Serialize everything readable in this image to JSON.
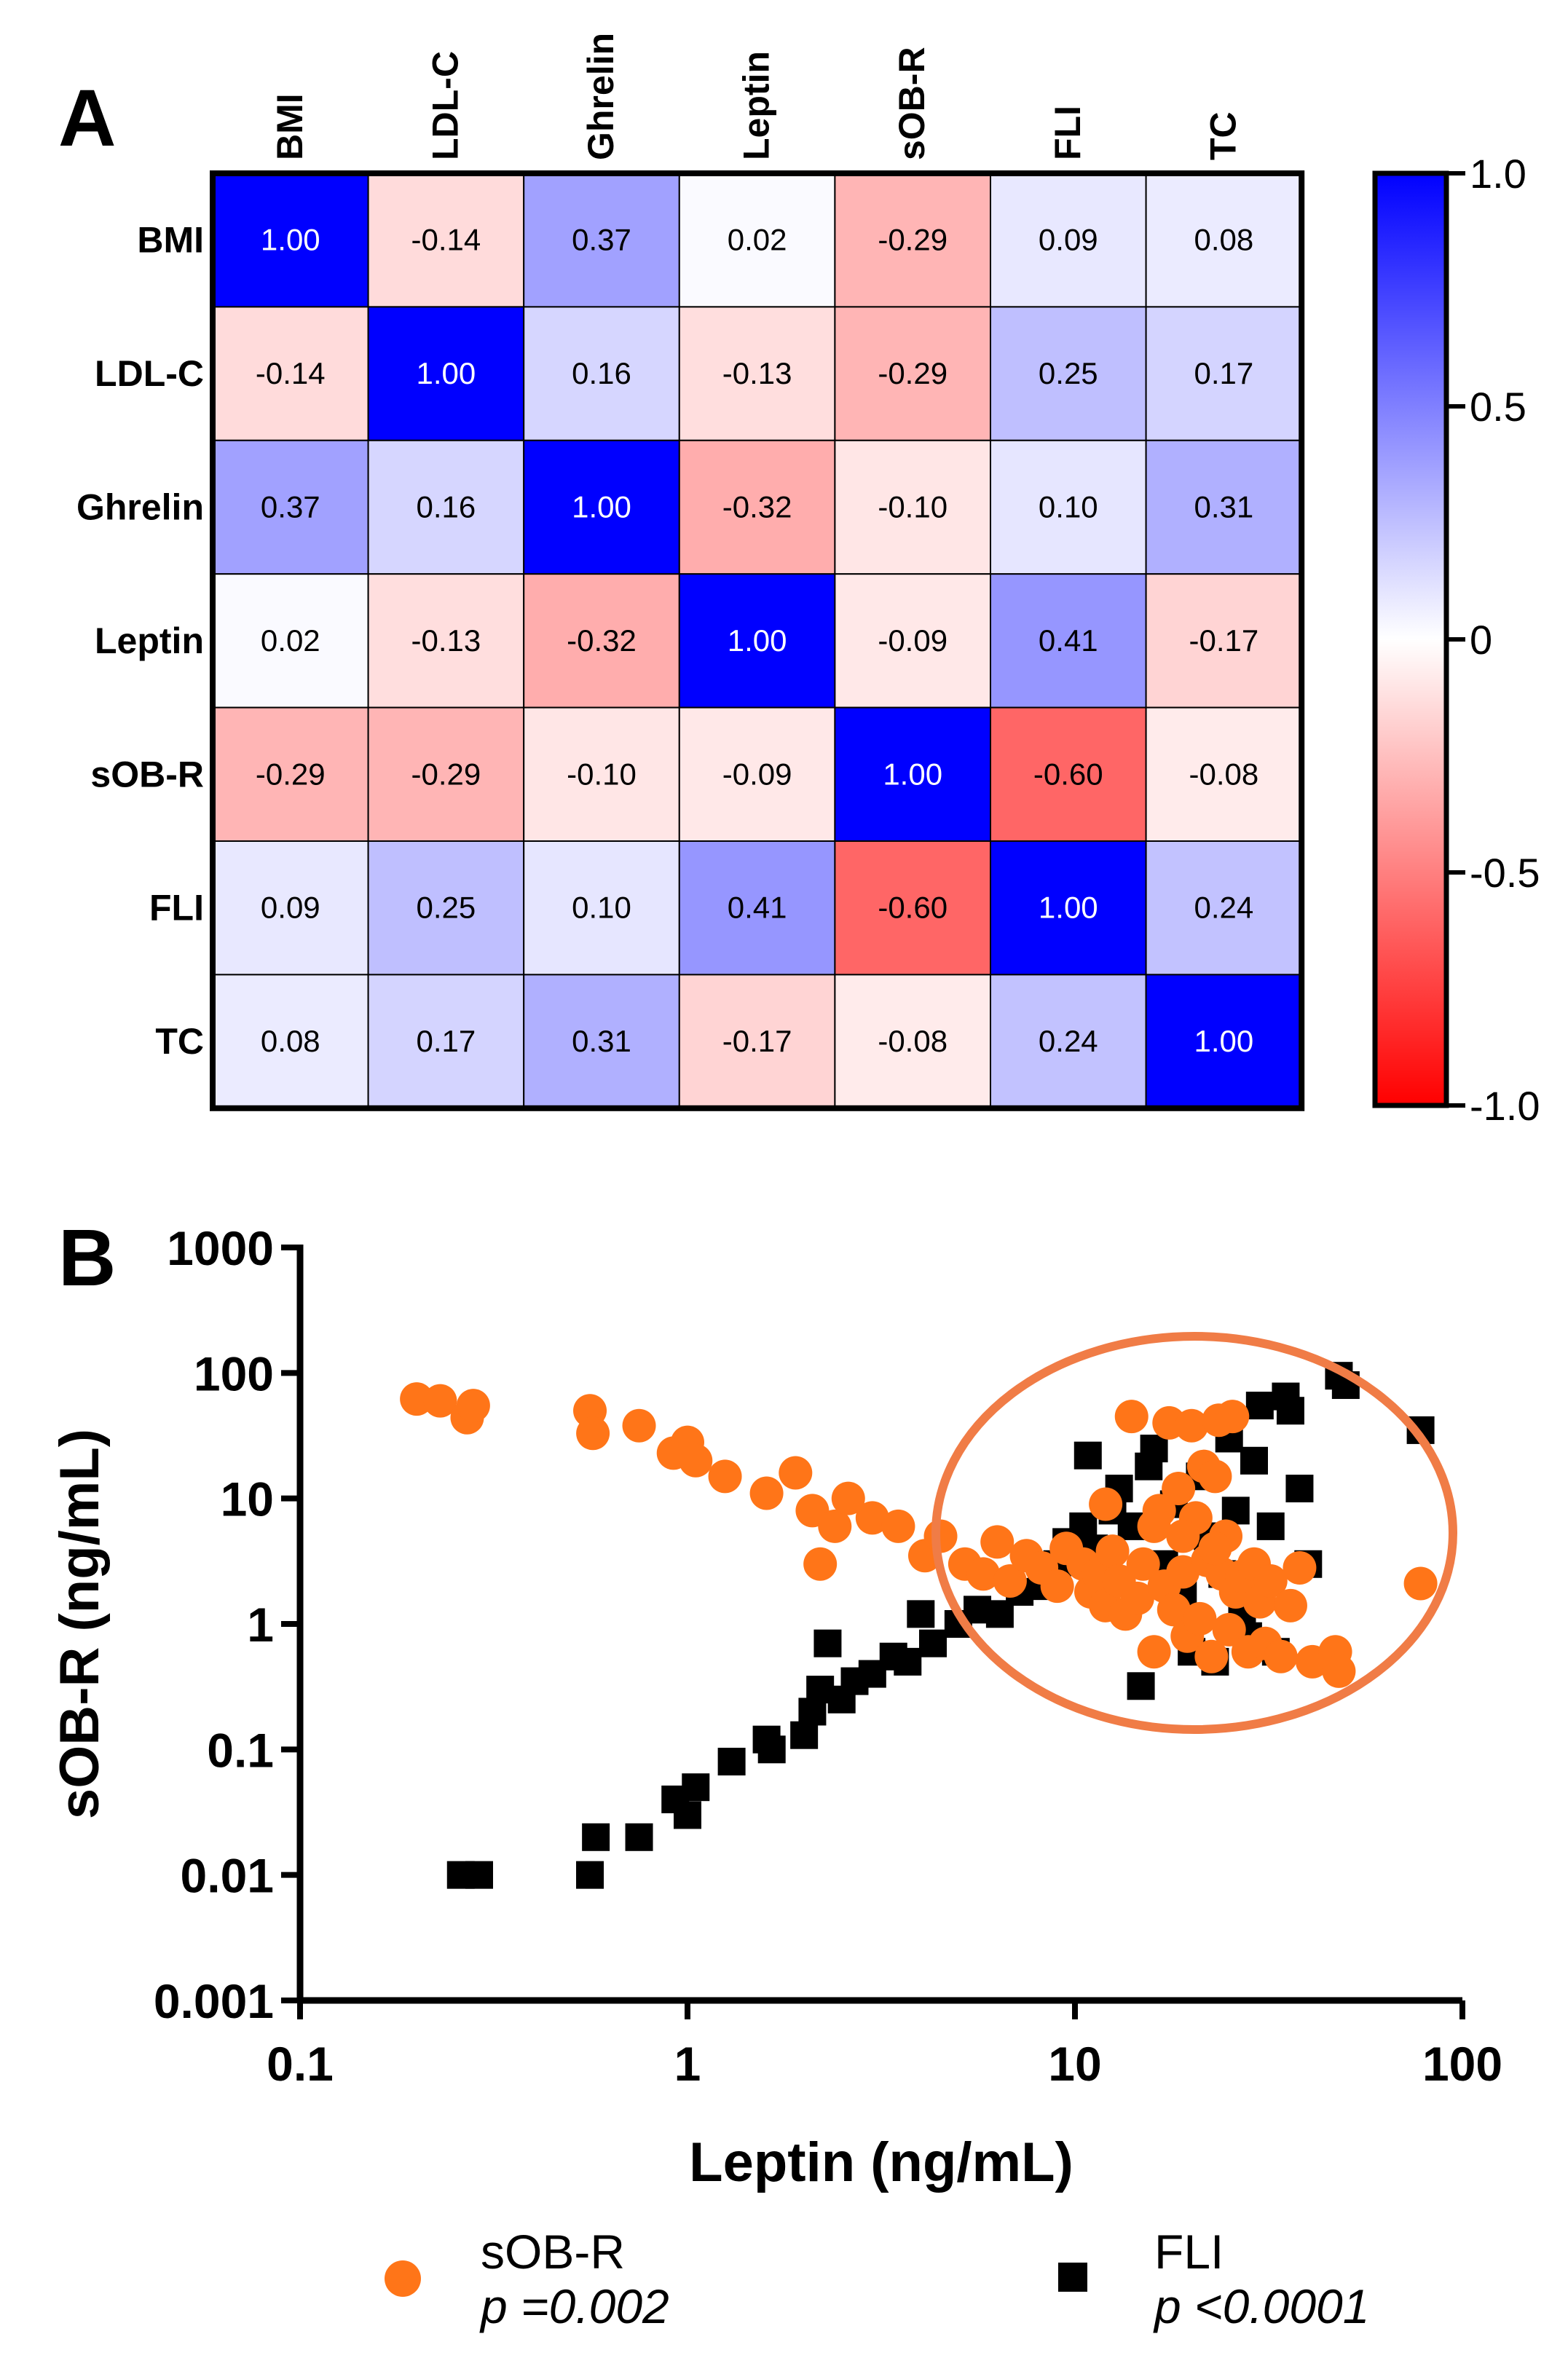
{
  "panel_a": {
    "label": "A"
  },
  "panel_b": {
    "label": "B"
  },
  "chart_data": [
    {
      "type": "heatmap",
      "title": "",
      "variables": [
        "BMI",
        "LDL-C",
        "Ghrelin",
        "Leptin",
        "sOB-R",
        "FLI",
        "TC"
      ],
      "matrix": [
        [
          1.0,
          -0.14,
          0.37,
          0.02,
          -0.29,
          0.09,
          0.08
        ],
        [
          -0.14,
          1.0,
          0.16,
          -0.13,
          -0.29,
          0.25,
          0.17
        ],
        [
          0.37,
          0.16,
          1.0,
          -0.32,
          -0.1,
          0.1,
          0.31
        ],
        [
          0.02,
          -0.13,
          -0.32,
          1.0,
          -0.09,
          0.41,
          -0.17
        ],
        [
          -0.29,
          -0.29,
          -0.1,
          -0.09,
          1.0,
          -0.6,
          -0.08
        ],
        [
          0.09,
          0.25,
          0.1,
          0.41,
          -0.6,
          1.0,
          0.24
        ],
        [
          0.08,
          0.17,
          0.31,
          -0.17,
          -0.08,
          0.24,
          1.0
        ]
      ],
      "colorbar": {
        "range": [
          -1.0,
          1.0
        ],
        "ticks": [
          1.0,
          0.5,
          0,
          -0.5,
          -1.0
        ],
        "tick_labels": [
          "1.0",
          "0.5",
          "0",
          "-0.5",
          "-1.0"
        ],
        "colors": {
          "negative": "#ff0000",
          "zero": "#ffffff",
          "positive": "#0000ff"
        }
      }
    },
    {
      "type": "scatter",
      "xlabel": "Leptin (ng/mL)",
      "ylabel": "sOB-R (ng/mL)",
      "xscale": "log",
      "yscale": "log",
      "xlim": [
        0.1,
        100
      ],
      "ylim": [
        0.001,
        1000
      ],
      "xticks": [
        0.1,
        1,
        10,
        100
      ],
      "xtick_labels": [
        "0.1",
        "1",
        "10",
        "100"
      ],
      "yticks": [
        1000,
        100,
        10,
        1,
        0.1,
        0.01,
        0.001
      ],
      "ytick_labels": [
        "1000",
        "100",
        "10",
        "1",
        "0.1",
        "0.01",
        "0.001"
      ],
      "series": [
        {
          "name": "sOB-R",
          "marker": "circle",
          "color": "#ff7518",
          "p_value": "p =0.002",
          "points": [
            [
              0.2,
              62
            ],
            [
              0.23,
              60
            ],
            [
              0.27,
              44
            ],
            [
              0.28,
              55
            ],
            [
              0.56,
              50
            ],
            [
              0.57,
              33
            ],
            [
              0.75,
              38
            ],
            [
              0.92,
              23
            ],
            [
              1.0,
              28
            ],
            [
              1.05,
              20
            ],
            [
              1.25,
              15
            ],
            [
              1.6,
              11
            ],
            [
              1.9,
              16
            ],
            [
              2.1,
              8
            ],
            [
              2.2,
              3
            ],
            [
              2.4,
              6
            ],
            [
              2.6,
              10
            ],
            [
              3.0,
              7
            ],
            [
              3.5,
              6
            ],
            [
              4.1,
              3.5
            ],
            [
              4.5,
              5
            ],
            [
              5.2,
              3
            ],
            [
              5.8,
              2.5
            ],
            [
              6.3,
              4.5
            ],
            [
              6.8,
              2.2
            ],
            [
              7.5,
              3.5
            ],
            [
              8.2,
              2.8
            ],
            [
              9.0,
              2.0
            ],
            [
              9.5,
              4
            ],
            [
              10.5,
              3
            ],
            [
              11,
              1.8
            ],
            [
              11.5,
              2.5
            ],
            [
              12,
              1.4
            ],
            [
              12.5,
              3.8
            ],
            [
              13,
              2.2
            ],
            [
              13.5,
              1.2
            ],
            [
              14,
              45
            ],
            [
              14.5,
              1.6
            ],
            [
              15,
              3
            ],
            [
              16,
              0.6
            ],
            [
              16.5,
              8
            ],
            [
              17,
              2
            ],
            [
              17.5,
              40
            ],
            [
              18,
              1.3
            ],
            [
              18.5,
              12
            ],
            [
              19,
              2.6
            ],
            [
              19.5,
              0.8
            ],
            [
              20,
              38
            ],
            [
              20.5,
              7
            ],
            [
              21,
              1.1
            ],
            [
              21.5,
              18
            ],
            [
              22,
              3.2
            ],
            [
              22.5,
              0.55
            ],
            [
              23,
              15
            ],
            [
              23.5,
              42
            ],
            [
              24,
              2.5
            ],
            [
              24.5,
              5
            ],
            [
              25,
              0.9
            ],
            [
              25.5,
              45
            ],
            [
              26,
              1.8
            ],
            [
              27,
              2.4
            ],
            [
              28,
              0.6
            ],
            [
              29,
              3
            ],
            [
              30,
              1.5
            ],
            [
              31,
              0.7
            ],
            [
              32,
              2.2
            ],
            [
              34,
              0.55
            ],
            [
              36,
              1.4
            ],
            [
              38,
              2.8
            ],
            [
              41,
              0.5
            ],
            [
              47,
              0.6
            ],
            [
              48,
              0.42
            ],
            [
              78,
              2.1
            ],
            [
              12,
              9
            ],
            [
              16,
              6
            ],
            [
              19,
              5
            ],
            [
              23,
              4
            ]
          ]
        },
        {
          "name": "FLI",
          "marker": "square",
          "color": "#000000",
          "p_value": "p <0.0001",
          "points": [
            [
              0.26,
              0.01
            ],
            [
              0.29,
              0.01
            ],
            [
              0.56,
              0.01
            ],
            [
              0.58,
              0.02
            ],
            [
              0.75,
              0.02
            ],
            [
              0.93,
              0.04
            ],
            [
              1.0,
              0.03
            ],
            [
              1.05,
              0.05
            ],
            [
              1.3,
              0.08
            ],
            [
              1.6,
              0.12
            ],
            [
              1.65,
              0.1
            ],
            [
              2.0,
              0.13
            ],
            [
              2.1,
              0.2
            ],
            [
              2.2,
              0.3
            ],
            [
              2.3,
              0.7
            ],
            [
              2.5,
              0.25
            ],
            [
              2.7,
              0.35
            ],
            [
              3.0,
              0.4
            ],
            [
              3.4,
              0.55
            ],
            [
              3.7,
              0.5
            ],
            [
              4.0,
              1.2
            ],
            [
              4.3,
              0.7
            ],
            [
              5.0,
              1.0
            ],
            [
              5.6,
              1.3
            ],
            [
              6.4,
              1.2
            ],
            [
              7.2,
              1.8
            ],
            [
              8.2,
              2.0
            ],
            [
              9.0,
              3.0
            ],
            [
              9.5,
              4.5
            ],
            [
              10.5,
              6.0
            ],
            [
              11.2,
              4.0
            ],
            [
              12.5,
              8.0
            ],
            [
              14.0,
              6.0
            ],
            [
              14.8,
              0.32
            ],
            [
              16,
              25
            ],
            [
              17,
              3
            ],
            [
              18,
              9
            ],
            [
              19,
              1.8
            ],
            [
              20,
              0.6
            ],
            [
              21,
              15
            ],
            [
              22,
              5
            ],
            [
              23,
              0.5
            ],
            [
              24,
              2.5
            ],
            [
              25,
              30
            ],
            [
              26,
              8
            ],
            [
              27,
              1.2
            ],
            [
              28,
              0.8
            ],
            [
              29,
              20
            ],
            [
              30,
              55
            ],
            [
              32,
              6
            ],
            [
              33,
              0.6
            ],
            [
              35,
              65
            ],
            [
              36,
              50
            ],
            [
              38,
              12
            ],
            [
              40,
              3
            ],
            [
              48,
              95
            ],
            [
              50,
              80
            ],
            [
              78,
              35
            ],
            [
              10.8,
              22
            ],
            [
              13,
              12
            ],
            [
              15.5,
              18
            ]
          ]
        }
      ],
      "annotation": "ellipse highlighting high-leptin cluster"
    }
  ]
}
